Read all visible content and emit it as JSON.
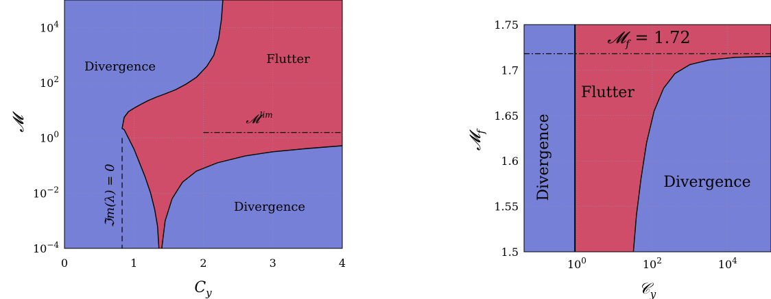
{
  "colors": {
    "divergence": "#7680d6",
    "flutter": "#cf4d69",
    "grid": "#8a8fb8"
  },
  "chart_data": [
    {
      "type": "area",
      "xlabel": "C_y",
      "ylabel": "𝓜",
      "xlim": [
        0,
        4
      ],
      "ylim_log10": [
        -4,
        5
      ],
      "y_scale": "log",
      "grid": true,
      "x_ticks": [
        "0",
        "1",
        "2",
        "3",
        "4"
      ],
      "y_ticks": [
        {
          "base": "10",
          "exp": "−4"
        },
        {
          "base": "10",
          "exp": "−2"
        },
        {
          "base": "10",
          "exp": "0"
        },
        {
          "base": "10",
          "exp": "2"
        },
        {
          "base": "10",
          "exp": "4"
        }
      ],
      "region_labels": {
        "divergence_upper": "Divergence",
        "divergence_lower": "Divergence",
        "flutter": "Flutter"
      },
      "annotations": {
        "mlim_label": "𝓜",
        "mlim_sup": "lim",
        "mlim_log10": 0.2,
        "mlim_x_start": 2,
        "im_zero_label": "ℑm(λ) = 0",
        "im_zero_x": 0.83
      },
      "boundary_left": [
        [
          0.83,
          0.35
        ],
        [
          0.86,
          0.75
        ],
        [
          0.92,
          0.95
        ],
        [
          1.0,
          1.08
        ],
        [
          1.1,
          1.22
        ],
        [
          1.2,
          1.35
        ],
        [
          1.32,
          1.48
        ],
        [
          1.45,
          1.6
        ],
        [
          1.6,
          1.75
        ],
        [
          1.75,
          1.95
        ],
        [
          1.9,
          2.2
        ],
        [
          2.05,
          2.6
        ],
        [
          2.15,
          3.0
        ],
        [
          2.22,
          3.6
        ],
        [
          2.26,
          4.3
        ],
        [
          2.28,
          5.0
        ]
      ],
      "boundary_lower": [
        [
          1.36,
          -4.0
        ],
        [
          1.34,
          -3.2
        ],
        [
          1.3,
          -2.6
        ],
        [
          1.24,
          -2.0
        ],
        [
          1.16,
          -1.4
        ],
        [
          1.08,
          -0.9
        ],
        [
          1.0,
          -0.4
        ],
        [
          0.92,
          0.0
        ],
        [
          0.86,
          0.3
        ],
        [
          0.83,
          0.35
        ]
      ],
      "boundary_right": [
        [
          1.4,
          -4.0
        ],
        [
          1.45,
          -3.0
        ],
        [
          1.55,
          -2.2
        ],
        [
          1.7,
          -1.6
        ],
        [
          1.9,
          -1.2
        ],
        [
          2.2,
          -0.9
        ],
        [
          2.6,
          -0.65
        ],
        [
          3.0,
          -0.5
        ],
        [
          3.5,
          -0.38
        ],
        [
          4.0,
          -0.28
        ]
      ]
    },
    {
      "type": "area",
      "xlabel": "𝒞_y",
      "ylabel": "𝓜_f",
      "xlim_log10": [
        -1.4,
        5.15
      ],
      "x_scale": "log",
      "ylim": [
        1.5,
        1.75
      ],
      "grid": true,
      "x_ticks": [
        {
          "base": "10",
          "exp": "0"
        },
        {
          "base": "10",
          "exp": "2"
        },
        {
          "base": "10",
          "exp": "4"
        }
      ],
      "y_ticks": [
        "1.5",
        "1.55",
        "1.6",
        "1.65",
        "1.7",
        "1.75"
      ],
      "region_labels": {
        "divergence_left": "Divergence",
        "divergence_right": "Divergence",
        "flutter": "Flutter"
      },
      "annotations": {
        "mf_label": "𝓜",
        "mf_sub": "f",
        "mf_value": "= 1.72",
        "mf_line": 1.718
      },
      "vertical_boundary_log10": -0.05,
      "boundary_curve": [
        [
          1.5,
          1.5
        ],
        [
          1.58,
          1.54
        ],
        [
          1.7,
          1.58
        ],
        [
          1.85,
          1.62
        ],
        [
          2.05,
          1.655
        ],
        [
          2.3,
          1.68
        ],
        [
          2.6,
          1.696
        ],
        [
          3.0,
          1.706
        ],
        [
          3.5,
          1.711
        ],
        [
          4.2,
          1.714
        ],
        [
          5.15,
          1.715
        ]
      ]
    }
  ]
}
